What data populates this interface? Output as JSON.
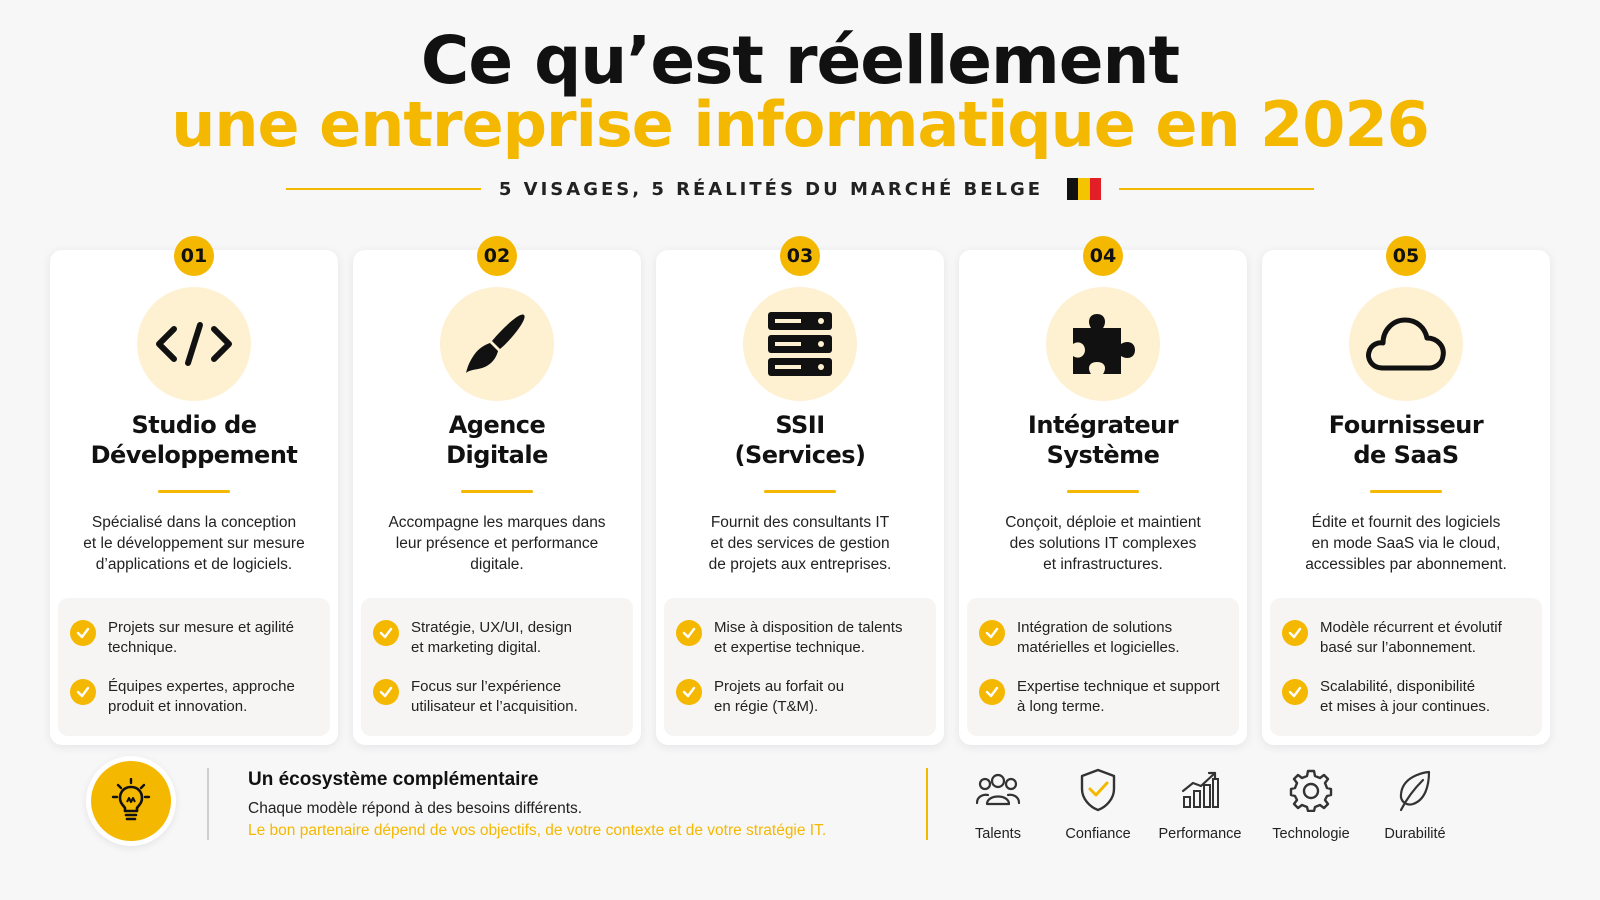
{
  "header": {
    "title_line1": "Ce qu’est réellement",
    "title_line2": "une entreprise informatique en 2026",
    "subtitle": "5 VISAGES, 5 RÉALITÉS DU MARCHÉ BELGE",
    "accent_color": "#f5b800",
    "flag_colors": [
      "#111111",
      "#f5c400",
      "#e21f26"
    ]
  },
  "cards": [
    {
      "number": "01",
      "icon": "code-icon",
      "title_line1": "Studio de",
      "title_line2": "Développement",
      "desc_lines": [
        "Spécialisé dans la conception",
        "et le développement sur mesure",
        "d’applications et de logiciels."
      ],
      "features": [
        {
          "line1": "Projets sur mesure et agilité",
          "line2": "technique."
        },
        {
          "line1": "Équipes expertes, approche",
          "line2": "produit et innovation."
        }
      ]
    },
    {
      "number": "02",
      "icon": "paintbrush-icon",
      "title_line1": "Agence",
      "title_line2": "Digitale",
      "desc_lines": [
        "Accompagne les marques dans",
        "leur présence et performance",
        "digitale."
      ],
      "features": [
        {
          "line1": "Stratégie, UX/UI, design",
          "line2": "et marketing digital."
        },
        {
          "line1": "Focus sur l’expérience",
          "line2": "utilisateur et l’acquisition."
        }
      ]
    },
    {
      "number": "03",
      "icon": "server-icon",
      "title_line1": "SSII",
      "title_line2": "(Services)",
      "desc_lines": [
        "Fournit des consultants IT",
        "et des services de gestion",
        "de projets aux entreprises."
      ],
      "features": [
        {
          "line1": "Mise à disposition de talents",
          "line2": "et expertise technique."
        },
        {
          "line1": "Projets au forfait ou",
          "line2": "en régie (T&M)."
        }
      ]
    },
    {
      "number": "04",
      "icon": "puzzle-icon",
      "title_line1": "Intégrateur",
      "title_line2": "Système",
      "desc_lines": [
        "Conçoit, déploie et maintient",
        "des solutions IT complexes",
        "et infrastructures."
      ],
      "features": [
        {
          "line1": "Intégration de solutions",
          "line2": "matérielles et logicielles."
        },
        {
          "line1": "Expertise technique et support",
          "line2": "à long terme."
        }
      ]
    },
    {
      "number": "05",
      "icon": "cloud-icon",
      "title_line1": "Fournisseur",
      "title_line2": "de SaaS",
      "desc_lines": [
        "Édite et fournit des logiciels",
        "en mode SaaS via le cloud,",
        "accessibles par abonnement."
      ],
      "features": [
        {
          "line1": "Modèle récurrent et évolutif",
          "line2": "basé sur l’abonnement."
        },
        {
          "line1": "Scalabilité, disponibilité",
          "line2": "et mises à jour continues."
        }
      ]
    }
  ],
  "footer": {
    "icon": "lightbulb-icon",
    "title": "Un écosystème complémentaire",
    "line1": "Chaque modèle répond à des besoins différents.",
    "line2": "Le bon partenaire dépend de vos objectifs, de votre contexte et de votre stratégie IT.",
    "values": [
      {
        "label": "Talents",
        "icon": "people-icon"
      },
      {
        "label": "Confiance",
        "icon": "shield-check-icon"
      },
      {
        "label": "Performance",
        "icon": "bar-chart-icon"
      },
      {
        "label": "Technologie",
        "icon": "gear-icon"
      },
      {
        "label": "Durabilité",
        "icon": "leaf-icon"
      }
    ]
  }
}
